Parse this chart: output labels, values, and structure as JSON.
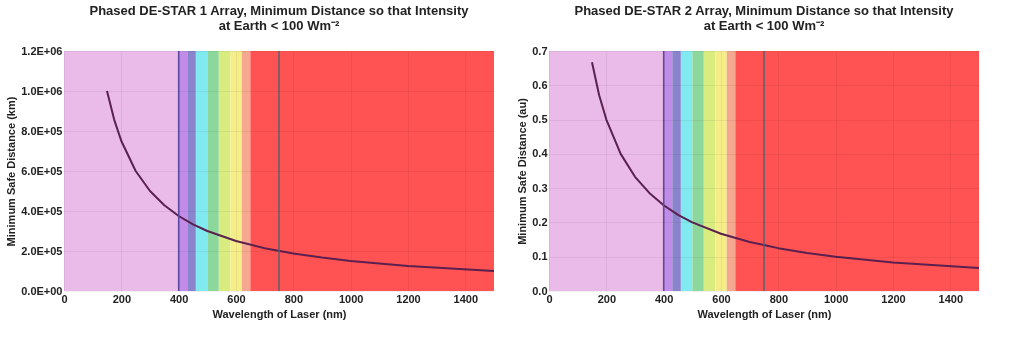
{
  "chart_data": [
    {
      "type": "line",
      "title": "Phased DE-STAR 1 Array, Minimum Distance so that Intensity at Earth < 100 Wm⁻²",
      "xlabel": "Wavelength of Laser (nm)",
      "ylabel": "Minimum Safe Distance (km)",
      "xlim": [
        0,
        1500
      ],
      "xticks": [
        0,
        200,
        400,
        600,
        800,
        1000,
        1200,
        1400
      ],
      "ylim": [
        0,
        1200000
      ],
      "yticks": [
        {
          "value": 0,
          "label": "0.0E+00"
        },
        {
          "value": 200000,
          "label": "2.0E+05"
        },
        {
          "value": 400000,
          "label": "4.0E+05"
        },
        {
          "value": 600000,
          "label": "6.0E+05"
        },
        {
          "value": 800000,
          "label": "8.0E+05"
        },
        {
          "value": 1000000,
          "label": "1.0E+06"
        },
        {
          "value": 1200000,
          "label": "1.2E+06"
        }
      ],
      "grid": true,
      "series": [
        {
          "color": "#5a2050",
          "x": [
            150,
            175,
            200,
            250,
            300,
            350,
            400,
            450,
            500,
            600,
            700,
            800,
            900,
            1000,
            1200,
            1500
          ],
          "values": [
            1000000,
            857000,
            750000,
            600000,
            500000,
            429000,
            375000,
            333000,
            300000,
            250000,
            214000,
            188000,
            167000,
            150000,
            125000,
            100000
          ]
        }
      ],
      "bands": [
        {
          "axis": "x",
          "from": 0,
          "to": 400,
          "color": "#eabbe8"
        },
        {
          "axis": "x",
          "from": 400,
          "to": 430,
          "color": "#c08ce8"
        },
        {
          "axis": "x",
          "from": 430,
          "to": 460,
          "color": "#8a84cc"
        },
        {
          "axis": "x",
          "from": 460,
          "to": 500,
          "color": "#80eaf0"
        },
        {
          "axis": "x",
          "from": 500,
          "to": 540,
          "color": "#8cd89c"
        },
        {
          "axis": "x",
          "from": 540,
          "to": 580,
          "color": "#d8ec80"
        },
        {
          "axis": "x",
          "from": 580,
          "to": 620,
          "color": "#f5ee88"
        },
        {
          "axis": "x",
          "from": 620,
          "to": 650,
          "color": "#f5a890"
        },
        {
          "axis": "x",
          "from": 650,
          "to": 1500,
          "color": "#ff5252"
        }
      ],
      "ref_lines": [
        {
          "axis": "x",
          "value": 400,
          "color": "#5a4aa0"
        },
        {
          "axis": "x",
          "value": 750,
          "color": "#5a6070"
        }
      ]
    },
    {
      "type": "line",
      "title": "Phased DE-STAR 2 Array, Minimum Distance so that Intensity at Earth < 100 Wm⁻²",
      "xlabel": "Wavelength of Laser (nm)",
      "ylabel": "Minimum Safe Distance (au)",
      "xlim": [
        0,
        1500
      ],
      "xticks": [
        0,
        200,
        400,
        600,
        800,
        1000,
        1200,
        1400
      ],
      "ylim": [
        0,
        0.7
      ],
      "yticks": [
        {
          "value": 0,
          "label": "0.0"
        },
        0.1,
        0.2,
        0.3,
        0.4,
        0.5,
        0.6,
        0.7
      ],
      "grid": true,
      "series": [
        {
          "color": "#5a2050",
          "x": [
            150,
            175,
            200,
            250,
            300,
            350,
            400,
            450,
            500,
            600,
            700,
            800,
            900,
            1000,
            1200,
            1500
          ],
          "values": [
            0.667,
            0.571,
            0.5,
            0.4,
            0.333,
            0.286,
            0.25,
            0.222,
            0.2,
            0.167,
            0.143,
            0.125,
            0.111,
            0.1,
            0.083,
            0.067
          ]
        }
      ],
      "bands": [
        {
          "axis": "x",
          "from": 0,
          "to": 400,
          "color": "#eabbe8"
        },
        {
          "axis": "x",
          "from": 400,
          "to": 430,
          "color": "#c08ce8"
        },
        {
          "axis": "x",
          "from": 430,
          "to": 460,
          "color": "#8a84cc"
        },
        {
          "axis": "x",
          "from": 460,
          "to": 500,
          "color": "#80eaf0"
        },
        {
          "axis": "x",
          "from": 500,
          "to": 540,
          "color": "#8cd89c"
        },
        {
          "axis": "x",
          "from": 540,
          "to": 580,
          "color": "#d8ec80"
        },
        {
          "axis": "x",
          "from": 580,
          "to": 620,
          "color": "#f5ee88"
        },
        {
          "axis": "x",
          "from": 620,
          "to": 650,
          "color": "#f5a890"
        },
        {
          "axis": "x",
          "from": 650,
          "to": 1500,
          "color": "#ff5252"
        }
      ],
      "ref_lines": [
        {
          "axis": "x",
          "value": 400,
          "color": "#5a4aa0"
        },
        {
          "axis": "x",
          "value": 750,
          "color": "#5a6070"
        }
      ]
    }
  ]
}
